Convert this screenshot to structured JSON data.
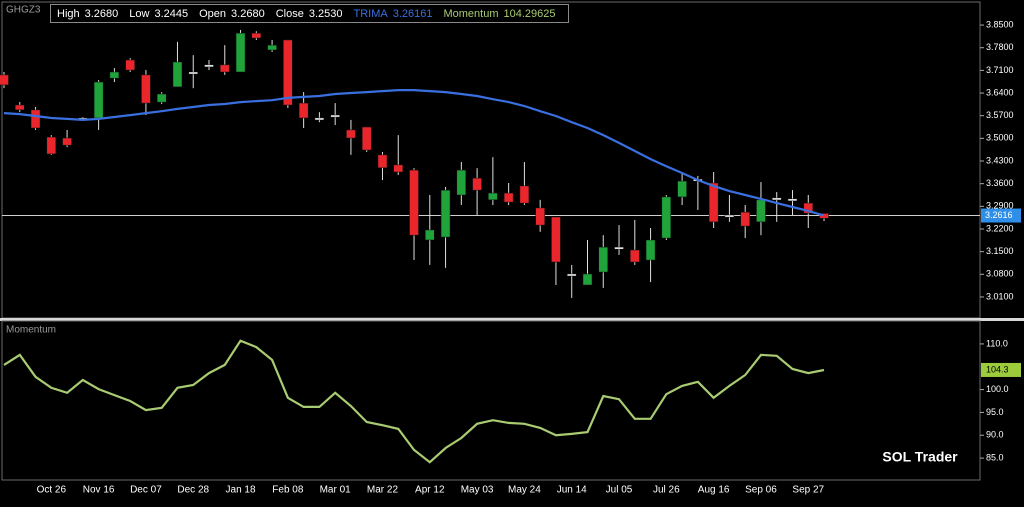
{
  "chart_data": [
    {
      "type": "candlestick",
      "title": "GHGZ3",
      "info": [
        {
          "name": "High",
          "value": "3.2680"
        },
        {
          "name": "Low",
          "value": "3.2445"
        },
        {
          "name": "Open",
          "value": "3.2680"
        },
        {
          "name": "Close",
          "value": "3.2530"
        },
        {
          "name": "TRIMA",
          "value": "3.26161"
        },
        {
          "name": "Momentum",
          "value": "104.29625"
        }
      ],
      "categories": [
        null,
        null,
        null,
        "Oct 26",
        null,
        null,
        "Nov 16",
        null,
        null,
        "Dec 07",
        null,
        null,
        "Dec 28",
        null,
        null,
        "Jan 18",
        null,
        null,
        "Feb 08",
        null,
        null,
        "Mar 01",
        null,
        null,
        "Mar 22",
        null,
        null,
        "Apr 12",
        null,
        null,
        "May 03",
        null,
        null,
        "May 24",
        null,
        null,
        "Jun 14",
        null,
        null,
        "Jul 05",
        null,
        null,
        "Jul 26",
        null,
        null,
        "Aug 16",
        null,
        null,
        "Sep 06",
        null,
        null,
        "Sep 27",
        null
      ],
      "open": [
        3.696,
        3.603,
        3.588,
        3.504,
        3.501,
        3.563,
        3.563,
        3.686,
        3.742,
        3.696,
        3.612,
        3.659,
        3.705,
        3.727,
        3.727,
        3.705,
        3.825,
        3.773,
        3.804,
        3.609,
        3.563,
        3.572,
        3.526,
        3.535,
        3.449,
        3.418,
        3.402,
        3.186,
        3.195,
        3.325,
        3.377,
        3.31,
        3.331,
        3.353,
        3.285,
        3.257,
        3.078,
        3.047,
        3.087,
        3.161,
        3.155,
        3.124,
        3.192,
        3.319,
        3.374,
        3.362,
        3.263,
        3.272,
        3.242,
        3.316,
        3.313,
        3.3,
        3.268
      ],
      "high": [
        3.705,
        3.612,
        3.597,
        3.51,
        3.526,
        3.566,
        3.68,
        3.717,
        3.748,
        3.711,
        3.643,
        3.798,
        3.757,
        3.742,
        3.788,
        3.835,
        3.831,
        3.804,
        3.804,
        3.643,
        3.581,
        3.609,
        3.557,
        3.535,
        3.458,
        3.51,
        3.408,
        3.325,
        3.35,
        3.427,
        3.408,
        3.442,
        3.362,
        3.427,
        3.31,
        3.257,
        3.109,
        3.186,
        3.201,
        3.232,
        3.248,
        3.223,
        3.325,
        3.39,
        3.384,
        3.396,
        3.325,
        3.294,
        3.365,
        3.334,
        3.34,
        3.325,
        3.268
      ],
      "low": [
        3.655,
        3.581,
        3.526,
        3.449,
        3.473,
        3.557,
        3.526,
        3.674,
        3.705,
        3.572,
        3.606,
        3.659,
        3.655,
        3.711,
        3.696,
        3.705,
        3.804,
        3.767,
        3.594,
        3.532,
        3.55,
        3.541,
        3.449,
        3.458,
        3.371,
        3.387,
        3.124,
        3.109,
        3.1,
        3.294,
        3.263,
        3.294,
        3.294,
        3.294,
        3.211,
        3.047,
        3.007,
        3.047,
        3.038,
        3.14,
        3.109,
        3.056,
        3.186,
        3.294,
        3.279,
        3.223,
        3.242,
        3.192,
        3.201,
        3.242,
        3.263,
        3.223,
        3.2445
      ],
      "close": [
        3.665,
        3.588,
        3.532,
        3.452,
        3.479,
        3.563,
        3.674,
        3.705,
        3.711,
        3.609,
        3.637,
        3.736,
        3.702,
        3.724,
        3.705,
        3.825,
        3.81,
        3.788,
        3.603,
        3.563,
        3.56,
        3.569,
        3.501,
        3.464,
        3.409,
        3.396,
        3.201,
        3.217,
        3.34,
        3.402,
        3.34,
        3.331,
        3.303,
        3.3,
        3.232,
        3.118,
        3.081,
        3.081,
        3.164,
        3.164,
        3.118,
        3.186,
        3.319,
        3.368,
        3.371,
        3.242,
        3.26,
        3.229,
        3.31,
        3.313,
        3.31,
        3.269,
        3.253
      ],
      "colors": {
        "up": "#1fa33a",
        "down": "#e8262b",
        "flat": "#ffffff"
      },
      "series": [
        {
          "name": "TRIMA",
          "color": "#3a6fe0",
          "values": [
            3.578,
            3.575,
            3.569,
            3.563,
            3.56,
            3.557,
            3.56,
            3.566,
            3.572,
            3.578,
            3.584,
            3.591,
            3.597,
            3.603,
            3.606,
            3.612,
            3.615,
            3.618,
            3.625,
            3.628,
            3.631,
            3.637,
            3.64,
            3.643,
            3.646,
            3.649,
            3.649,
            3.646,
            3.643,
            3.637,
            3.631,
            3.621,
            3.612,
            3.6,
            3.584,
            3.569,
            3.55,
            3.532,
            3.51,
            3.486,
            3.461,
            3.436,
            3.414,
            3.393,
            3.371,
            3.353,
            3.337,
            3.325,
            3.313,
            3.3,
            3.288,
            3.276,
            3.26161
          ]
        }
      ],
      "ylim": [
        2.945,
        3.912
      ],
      "yticks": [
        {
          "value": 3.01,
          "label": "3.0100"
        },
        {
          "value": 3.08,
          "label": "3.0800"
        },
        {
          "value": 3.15,
          "label": "3.1500"
        },
        {
          "value": 3.22,
          "label": "3.2200"
        },
        {
          "value": 3.29,
          "label": "3.2900"
        },
        {
          "value": 3.36,
          "label": "3.3600"
        },
        {
          "value": 3.43,
          "label": "3.4300"
        },
        {
          "value": 3.5,
          "label": "3.5000"
        },
        {
          "value": 3.57,
          "label": "3.5700"
        },
        {
          "value": 3.64,
          "label": "3.6400"
        },
        {
          "value": 3.71,
          "label": "3.7100"
        },
        {
          "value": 3.78,
          "label": "3.7800"
        },
        {
          "value": 3.85,
          "label": "3.8500"
        }
      ],
      "hline": {
        "value": 3.2616,
        "label": "3.2616",
        "color": "#2f8ee8"
      }
    },
    {
      "type": "line",
      "title": "Momentum",
      "series": [
        {
          "name": "Momentum",
          "color": "#a9cc72",
          "values": [
            105.4,
            107.6,
            102.8,
            100.4,
            99.3,
            102.1,
            100.1,
            98.8,
            97.5,
            95.5,
            96.0,
            100.4,
            101.0,
            103.6,
            105.4,
            110.7,
            109.3,
            106.5,
            98.2,
            96.2,
            96.2,
            99.3,
            96.4,
            92.9,
            92.2,
            91.4,
            86.8,
            84.1,
            87.2,
            89.4,
            92.5,
            93.3,
            92.7,
            92.5,
            91.6,
            90.0,
            90.3,
            90.7,
            98.6,
            97.9,
            93.6,
            93.6,
            99.0,
            100.8,
            101.7,
            98.2,
            100.8,
            103.2,
            107.6,
            107.4,
            104.5,
            103.6,
            104.29625
          ]
        }
      ],
      "last_label": {
        "value": 104.29625,
        "label": "104.3",
        "color": "#9ccc3c"
      },
      "ylim": [
        80.2,
        114.8
      ],
      "yticks": [
        {
          "value": 85,
          "label": "85.0"
        },
        {
          "value": 90,
          "label": "90.0"
        },
        {
          "value": 95,
          "label": "95.0"
        },
        {
          "value": 100,
          "label": "100.0"
        },
        {
          "value": 110,
          "label": "110.0"
        }
      ],
      "watermark": "SOL Trader"
    }
  ]
}
